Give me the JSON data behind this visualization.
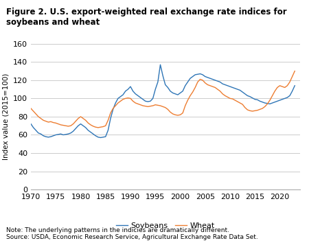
{
  "title": "Figure 2. U.S. export-weighted real exchange rate indices for soybeans and wheat",
  "ylabel": "Index value (2015=100)",
  "note": "Note: The underlying patterns in the indicies are dramatically different.",
  "source": "Source: USDA, Economic Research Service, Agricultural Exchange Rate Data Set.",
  "ylim": [
    0,
    160
  ],
  "yticks": [
    0,
    20,
    40,
    60,
    80,
    100,
    120,
    140,
    160
  ],
  "xticks": [
    1970,
    1975,
    1980,
    1985,
    1990,
    1995,
    2000,
    2005,
    2010,
    2015,
    2020
  ],
  "soybean_color": "#2E75B6",
  "wheat_color": "#ED7D31",
  "background_color": "#FFFFFF",
  "grid_color": "#CCCCCC",
  "legend_entries": [
    "Soybeans",
    "Wheat"
  ],
  "soybeans": {
    "years": [
      1970.0,
      1970.5,
      1971.0,
      1971.5,
      1972.0,
      1972.5,
      1973.0,
      1973.5,
      1974.0,
      1974.5,
      1975.0,
      1975.5,
      1976.0,
      1976.5,
      1977.0,
      1977.5,
      1978.0,
      1978.5,
      1979.0,
      1979.5,
      1980.0,
      1980.5,
      1981.0,
      1981.5,
      1982.0,
      1982.5,
      1983.0,
      1983.5,
      1984.0,
      1984.5,
      1985.0,
      1985.5,
      1986.0,
      1986.5,
      1987.0,
      1987.5,
      1988.0,
      1988.5,
      1989.0,
      1989.5,
      1990.0,
      1990.5,
      1991.0,
      1991.5,
      1992.0,
      1992.5,
      1993.0,
      1993.5,
      1994.0,
      1994.5,
      1995.0,
      1995.5,
      1996.0,
      1996.5,
      1997.0,
      1997.5,
      1998.0,
      1998.5,
      1999.0,
      1999.5,
      2000.0,
      2000.5,
      2001.0,
      2001.5,
      2002.0,
      2002.5,
      2003.0,
      2003.5,
      2004.0,
      2004.5,
      2005.0,
      2005.5,
      2006.0,
      2006.5,
      2007.0,
      2007.5,
      2008.0,
      2008.5,
      2009.0,
      2009.5,
      2010.0,
      2010.5,
      2011.0,
      2011.5,
      2012.0,
      2012.5,
      2013.0,
      2013.5,
      2014.0,
      2014.5,
      2015.0,
      2015.5,
      2016.0,
      2016.5,
      2017.0,
      2017.5,
      2018.0,
      2018.5,
      2019.0,
      2019.5,
      2020.0,
      2020.5,
      2021.0,
      2021.5,
      2022.0,
      2022.5,
      2023.0
    ],
    "values": [
      72.0,
      68.0,
      65.0,
      62.0,
      61.0,
      59.0,
      58.0,
      57.5,
      58.0,
      59.0,
      60.0,
      60.5,
      61.0,
      60.0,
      60.5,
      61.0,
      62.0,
      64.0,
      67.0,
      70.0,
      72.0,
      70.0,
      68.0,
      65.0,
      63.0,
      61.0,
      59.0,
      57.5,
      57.0,
      57.5,
      58.0,
      65.0,
      78.0,
      88.0,
      95.0,
      100.0,
      102.0,
      104.0,
      108.0,
      110.0,
      113.0,
      108.0,
      105.0,
      103.0,
      101.0,
      99.0,
      97.0,
      96.5,
      97.0,
      100.0,
      110.0,
      118.0,
      137.0,
      125.0,
      115.0,
      112.0,
      108.0,
      106.0,
      105.0,
      104.0,
      106.0,
      108.0,
      114.0,
      118.0,
      122.0,
      124.0,
      126.0,
      126.5,
      127.0,
      126.0,
      124.0,
      123.0,
      122.0,
      121.0,
      120.0,
      119.0,
      118.0,
      116.0,
      115.0,
      114.0,
      113.0,
      112.0,
      111.0,
      110.0,
      109.0,
      107.0,
      105.0,
      103.0,
      102.0,
      100.5,
      99.0,
      98.5,
      97.0,
      96.0,
      95.0,
      94.5,
      94.0,
      95.0,
      96.0,
      97.0,
      98.0,
      99.0,
      100.0,
      101.0,
      103.0,
      108.0,
      114.0
    ]
  },
  "wheat": {
    "years": [
      1970.0,
      1970.5,
      1971.0,
      1971.5,
      1972.0,
      1972.5,
      1973.0,
      1973.5,
      1974.0,
      1974.5,
      1975.0,
      1975.5,
      1976.0,
      1976.5,
      1977.0,
      1977.5,
      1978.0,
      1978.5,
      1979.0,
      1979.5,
      1980.0,
      1980.5,
      1981.0,
      1981.5,
      1982.0,
      1982.5,
      1983.0,
      1983.5,
      1984.0,
      1984.5,
      1985.0,
      1985.5,
      1986.0,
      1986.5,
      1987.0,
      1987.5,
      1988.0,
      1988.5,
      1989.0,
      1989.5,
      1990.0,
      1990.5,
      1991.0,
      1991.5,
      1992.0,
      1992.5,
      1993.0,
      1993.5,
      1994.0,
      1994.5,
      1995.0,
      1995.5,
      1996.0,
      1996.5,
      1997.0,
      1997.5,
      1998.0,
      1998.5,
      1999.0,
      1999.5,
      2000.0,
      2000.5,
      2001.0,
      2001.5,
      2002.0,
      2002.5,
      2003.0,
      2003.5,
      2004.0,
      2004.5,
      2005.0,
      2005.5,
      2006.0,
      2006.5,
      2007.0,
      2007.5,
      2008.0,
      2008.5,
      2009.0,
      2009.5,
      2010.0,
      2010.5,
      2011.0,
      2011.5,
      2012.0,
      2012.5,
      2013.0,
      2013.5,
      2014.0,
      2014.5,
      2015.0,
      2015.5,
      2016.0,
      2016.5,
      2017.0,
      2017.5,
      2018.0,
      2018.5,
      2019.0,
      2019.5,
      2020.0,
      2020.5,
      2021.0,
      2021.5,
      2022.0,
      2022.5,
      2023.0
    ],
    "values": [
      89.0,
      86.0,
      83.0,
      80.0,
      78.0,
      76.0,
      75.0,
      74.0,
      74.5,
      73.5,
      73.0,
      72.0,
      71.0,
      70.5,
      70.0,
      69.5,
      70.0,
      72.0,
      75.0,
      78.0,
      80.0,
      78.0,
      76.0,
      73.0,
      71.0,
      69.5,
      68.5,
      68.0,
      68.5,
      69.0,
      70.0,
      76.0,
      84.0,
      89.0,
      92.0,
      95.0,
      97.0,
      99.0,
      100.0,
      100.5,
      100.0,
      97.0,
      95.0,
      94.0,
      93.0,
      92.0,
      91.5,
      91.0,
      91.5,
      92.0,
      93.0,
      92.5,
      92.0,
      91.0,
      90.0,
      88.0,
      85.0,
      83.0,
      82.0,
      81.5,
      82.0,
      84.0,
      92.0,
      98.0,
      103.0,
      107.0,
      112.0,
      118.0,
      121.0,
      120.0,
      117.0,
      115.0,
      114.0,
      113.0,
      112.0,
      110.0,
      108.0,
      105.0,
      103.0,
      101.5,
      100.0,
      99.5,
      98.0,
      96.5,
      95.0,
      93.5,
      90.0,
      87.5,
      86.5,
      86.0,
      86.5,
      87.0,
      88.0,
      89.0,
      91.0,
      94.0,
      98.0,
      103.0,
      108.0,
      112.0,
      114.0,
      113.0,
      112.0,
      114.0,
      118.0,
      124.0,
      130.0
    ]
  }
}
